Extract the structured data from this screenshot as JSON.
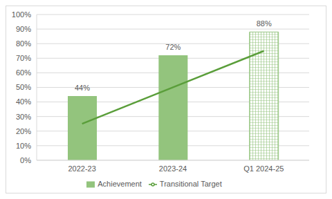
{
  "chart_data": {
    "type": "bar",
    "categories": [
      "2022-23",
      "2023-24",
      "Q1 2024-25"
    ],
    "series": [
      {
        "name": "Achievement",
        "type": "bar",
        "color": "#93c47d",
        "values": [
          44,
          72,
          88
        ],
        "value_labels": [
          "44%",
          "72%",
          "88%"
        ]
      },
      {
        "name": "Transitional Target",
        "type": "line",
        "color": "#5a9e3a",
        "values": [
          25,
          50,
          75
        ]
      }
    ],
    "ylim": [
      0,
      100
    ],
    "yticks": [
      {
        "value": 0,
        "label": "0%"
      },
      {
        "value": 10,
        "label": "10%"
      },
      {
        "value": 20,
        "label": "20%"
      },
      {
        "value": 30,
        "label": "30%"
      },
      {
        "value": 40,
        "label": "40%"
      },
      {
        "value": 50,
        "label": "50%"
      },
      {
        "value": 60,
        "label": "60%"
      },
      {
        "value": 70,
        "label": "70%"
      },
      {
        "value": 80,
        "label": "80%"
      },
      {
        "value": 90,
        "label": "90%"
      },
      {
        "value": 100,
        "label": "100%"
      }
    ],
    "grid": true,
    "legend": "bottom",
    "data_labels": true
  }
}
